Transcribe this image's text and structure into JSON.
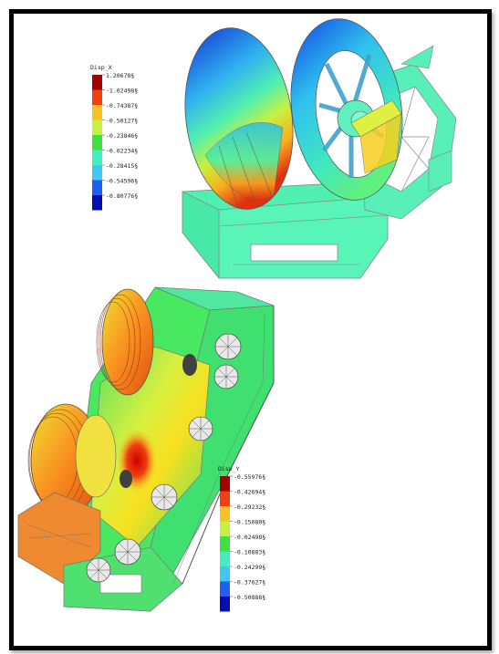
{
  "figure": {
    "border_color": "#000000",
    "background": "#ffffff"
  },
  "legend_top": {
    "title": "Disp_X",
    "values": [
      "1.20678§",
      "-1.02498§",
      "-0.74387§",
      "-0.50127§",
      "-0.23846§",
      "-0.02234§",
      "-0.28415§",
      "-0.54596§",
      "-0.80776§"
    ],
    "colors": [
      "#a40000",
      "#f04010",
      "#f8c020",
      "#c8f040",
      "#40e040",
      "#40f0c0",
      "#40c8f0",
      "#2060f0",
      "#0010b0"
    ]
  },
  "legend_bottom": {
    "title": "Disp_Y",
    "values": [
      "-0.55976§",
      "-0.42694§",
      "-0.29232§",
      "-0.15080§",
      "-0.02498§",
      "-0.10883§",
      "-0.24299§",
      "-0.37627§",
      "-0.50888§"
    ],
    "colors": [
      "#a40000",
      "#f04010",
      "#f8c020",
      "#c8f040",
      "#40e040",
      "#40f0c0",
      "#40c8f0",
      "#2060f0",
      "#0010b0"
    ]
  }
}
